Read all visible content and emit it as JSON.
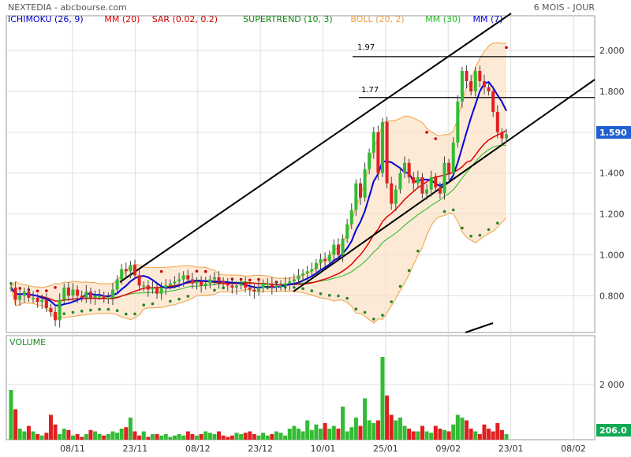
{
  "header": {
    "title": "NEXTEDIA - abcbourse.com",
    "period": "6 MOIS - JOUR",
    "legend": [
      {
        "label": "ICHIMOKU (26, 9)",
        "color": "#0000cc"
      },
      {
        "label": "MM (20)",
        "color": "#e00000"
      },
      {
        "label": "SAR (0.02, 0.2)",
        "color": "#cc0000"
      },
      {
        "label": "SUPERTREND (10, 3)",
        "color": "#118811"
      },
      {
        "label": "BOLL (20, 2)",
        "color": "#f0a040"
      },
      {
        "label": "MM (30)",
        "color": "#22bb22"
      },
      {
        "label": "MM (7)",
        "color": "#0000dd"
      }
    ]
  },
  "volume_label": "VOLUME",
  "last_price": "1.590",
  "last_volume": "206.0",
  "levels": [
    "1.97",
    "1.77"
  ],
  "colors": {
    "up": "#33bb33",
    "down": "#e02020",
    "badge": "#2060d0",
    "grid": "#dddddd"
  },
  "chart_data": [
    {
      "type": "candlestick",
      "title": "NEXTEDIA",
      "y_ticks": [
        "2.000",
        "1.800",
        "1.600",
        "1.400",
        "1.200",
        "1.000",
        "0.800"
      ],
      "ylim": [
        0.62,
        2.17
      ],
      "x_ticks": [
        "08/11",
        "23/11",
        "08/12",
        "23/12",
        "10/01",
        "25/01",
        "09/02",
        "23/01",
        "08/02"
      ],
      "grid": true,
      "series": [
        {
          "name": "Close",
          "values": [
            0.84,
            0.78,
            0.8,
            0.82,
            0.79,
            0.79,
            0.77,
            0.78,
            0.74,
            0.72,
            0.68,
            0.78,
            0.84,
            0.8,
            0.83,
            0.8,
            0.79,
            0.82,
            0.79,
            0.8,
            0.8,
            0.79,
            0.79,
            0.83,
            0.88,
            0.93,
            0.92,
            0.95,
            0.9,
            0.85,
            0.85,
            0.83,
            0.84,
            0.81,
            0.84,
            0.85,
            0.86,
            0.87,
            0.88,
            0.9,
            0.88,
            0.86,
            0.87,
            0.85,
            0.86,
            0.88,
            0.89,
            0.87,
            0.86,
            0.85,
            0.84,
            0.85,
            0.86,
            0.84,
            0.83,
            0.82,
            0.84,
            0.86,
            0.86,
            0.84,
            0.85,
            0.85,
            0.86,
            0.87,
            0.88,
            0.9,
            0.91,
            0.92,
            0.93,
            0.96,
            0.98,
            0.97,
            1.0,
            1.05,
            1.0,
            1.08,
            1.15,
            1.22,
            1.35,
            1.28,
            1.42,
            1.5,
            1.6,
            1.4,
            1.65,
            1.35,
            1.25,
            1.32,
            1.4,
            1.45,
            1.38,
            1.35,
            1.38,
            1.3,
            1.32,
            1.38,
            1.33,
            1.3,
            1.45,
            1.4,
            1.55,
            1.75,
            1.9,
            1.85,
            1.8,
            1.9,
            1.85,
            1.82,
            1.8,
            1.7,
            1.6,
            1.57,
            1.59
          ]
        }
      ],
      "reference_lines": [
        1.97,
        1.77
      ]
    },
    {
      "type": "bar",
      "title": "VOLUME",
      "y_ticks": [
        "2 000"
      ],
      "values": [
        1800,
        1100,
        400,
        300,
        500,
        300,
        200,
        150,
        250,
        900,
        550,
        200,
        400,
        350,
        150,
        200,
        100,
        200,
        350,
        300,
        200,
        150,
        200,
        300,
        250,
        400,
        450,
        800,
        300,
        150,
        300,
        100,
        200,
        200,
        150,
        200,
        100,
        150,
        200,
        150,
        300,
        200,
        150,
        200,
        300,
        250,
        200,
        300,
        150,
        100,
        150,
        250,
        200,
        250,
        300,
        200,
        150,
        250,
        150,
        200,
        300,
        250,
        150,
        400,
        500,
        400,
        300,
        700,
        350,
        550,
        400,
        600,
        400,
        500,
        400,
        1200,
        300,
        450,
        800,
        500,
        1500,
        700,
        600,
        700,
        3000,
        1600,
        900,
        700,
        800,
        500,
        400,
        300,
        300,
        500,
        300,
        250,
        500,
        400,
        350,
        300,
        550,
        900,
        800,
        700,
        400,
        300,
        200,
        550,
        400,
        300,
        600,
        350,
        200
      ]
    }
  ]
}
